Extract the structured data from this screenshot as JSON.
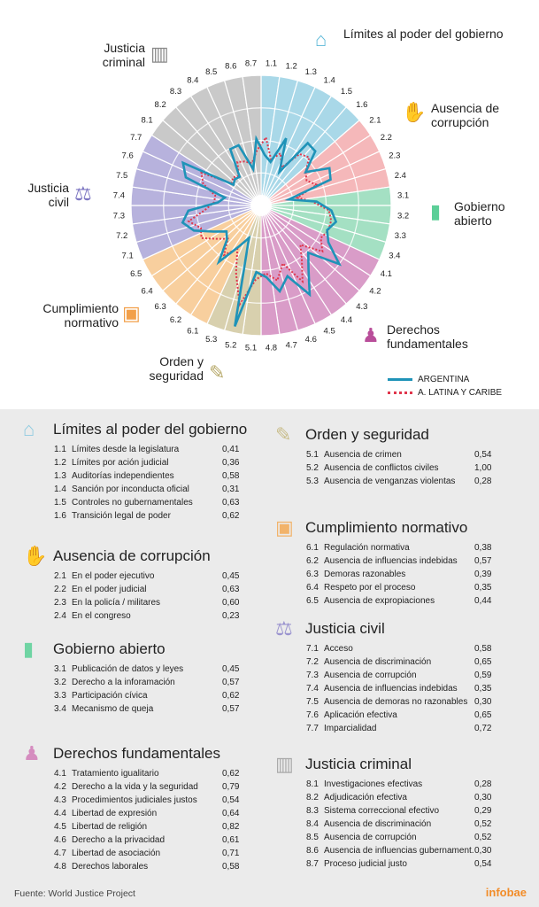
{
  "chart_data": {
    "type": "radar",
    "rlim": [
      0,
      1
    ],
    "axes": [
      "1.1",
      "1.2",
      "1.3",
      "1.4",
      "1.5",
      "1.6",
      "2.1",
      "2.2",
      "2.3",
      "2.4",
      "3.1",
      "3.2",
      "3.3",
      "3.4",
      "4.1",
      "4.2",
      "4.3",
      "4.4",
      "4.5",
      "4.6",
      "4.7",
      "4.8",
      "5.1",
      "5.2",
      "5.3",
      "6.1",
      "6.2",
      "6.3",
      "6.4",
      "6.5",
      "7.1",
      "7.2",
      "7.3",
      "7.4",
      "7.5",
      "7.6",
      "7.7",
      "8.1",
      "8.2",
      "8.3",
      "8.4",
      "8.5",
      "8.6",
      "8.7"
    ],
    "legend_placement": "bottom-right",
    "series": [
      {
        "name": "ARGENTINA",
        "color": "#1f93b8",
        "style": "solid",
        "values": [
          0.41,
          0.36,
          0.58,
          0.31,
          0.63,
          0.62,
          0.45,
          0.63,
          0.6,
          0.23,
          0.45,
          0.57,
          0.62,
          0.57,
          0.62,
          0.79,
          0.54,
          0.64,
          0.82,
          0.61,
          0.71,
          0.58,
          0.54,
          1.0,
          0.28,
          0.38,
          0.57,
          0.39,
          0.35,
          0.44,
          0.58,
          0.65,
          0.59,
          0.35,
          0.3,
          0.65,
          0.72,
          0.28,
          0.3,
          0.29,
          0.52,
          0.52,
          0.3,
          0.54
        ]
      },
      {
        "name": "A. LATINA Y CARIBE",
        "color": "#e0364c",
        "style": "dotted",
        "values": [
          0.55,
          0.38,
          0.45,
          0.35,
          0.52,
          0.55,
          0.45,
          0.42,
          0.48,
          0.3,
          0.42,
          0.55,
          0.58,
          0.58,
          0.55,
          0.62,
          0.45,
          0.55,
          0.7,
          0.5,
          0.62,
          0.55,
          0.6,
          0.82,
          0.58,
          0.4,
          0.5,
          0.38,
          0.45,
          0.55,
          0.52,
          0.6,
          0.45,
          0.38,
          0.38,
          0.5,
          0.55,
          0.3,
          0.32,
          0.3,
          0.4,
          0.38,
          0.35,
          0.45
        ]
      }
    ],
    "groups": [
      {
        "name": "Límites al poder del gobierno",
        "count": 6,
        "color": "#a9d8e8"
      },
      {
        "name": "Ausencia de corrupción",
        "count": 4,
        "color": "#f5b8ba"
      },
      {
        "name": "Gobierno abierto",
        "count": 4,
        "color": "#a4e0c3"
      },
      {
        "name": "Derechos fundamentales",
        "count": 8,
        "color": "#d99cc8"
      },
      {
        "name": "Orden y seguridad",
        "count": 3,
        "color": "#d8d0ae"
      },
      {
        "name": "Cumplimiento normativo",
        "count": 5,
        "color": "#f8cf9e"
      },
      {
        "name": "Justicia civil",
        "count": 7,
        "color": "#b7b2dd"
      },
      {
        "name": "Justicia criminal",
        "count": 7,
        "color": "#c9c9c9"
      }
    ]
  },
  "chart_labels": {
    "g1": "Límites al poder del gobierno",
    "g2": "Ausencia de corrupción",
    "g3": "Gobierno abierto",
    "g4": "Derechos fundamentales",
    "g5": "Orden y seguridad",
    "g6": "Cumplimiento normativo",
    "g7": "Justicia civil",
    "g8": "Justicia criminal"
  },
  "icons": {
    "g1": "dome-icon",
    "g2": "bribe-hand-icon",
    "g3": "door-icon",
    "g4": "person-icon",
    "g5": "police-icon",
    "g6": "document-icon",
    "g7": "scales-icon",
    "g8": "prison-icon"
  },
  "legend": {
    "argentina": "ARGENTINA",
    "latam": "A. LATINA Y CARIBE"
  },
  "sections": [
    {
      "title": "Límites al poder del gobierno",
      "items": [
        [
          "1.1",
          "Límites desde la legislatura",
          "0,41"
        ],
        [
          "1.2",
          "Límites por ación judicial",
          "0,36"
        ],
        [
          "1.3",
          "Auditorías independientes",
          "0,58"
        ],
        [
          "1.4",
          "Sanción por inconducta oficial",
          "0,31"
        ],
        [
          "1.5",
          "Controles no gubernamentales",
          "0,63"
        ],
        [
          "1.6",
          "Transición legal de poder",
          "0,62"
        ]
      ]
    },
    {
      "title": "Ausencia de corrupción",
      "items": [
        [
          "2.1",
          "En el poder ejecutivo",
          "0,45"
        ],
        [
          "2.2",
          "En el poder judicial",
          "0,63"
        ],
        [
          "2.3",
          "En la policía / militares",
          "0,60"
        ],
        [
          "2.4",
          "En el congreso",
          "0,23"
        ]
      ]
    },
    {
      "title": "Gobierno abierto",
      "items": [
        [
          "3.1",
          "Publicación de datos y leyes",
          "0,45"
        ],
        [
          "3.2",
          "Derecho a la inforamación",
          "0,57"
        ],
        [
          "3.3",
          "Participación cívica",
          "0,62"
        ],
        [
          "3.4",
          "Mecanismo de queja",
          "0,57"
        ]
      ]
    },
    {
      "title": "Derechos fundamentales",
      "items": [
        [
          "4.1",
          "Tratamiento igualitario",
          "0,62"
        ],
        [
          "4.2",
          "Derecho a la vida y la  seguridad",
          "0,79"
        ],
        [
          "4.3",
          "Procedimientos judiciales justos",
          "0,54"
        ],
        [
          "4.4",
          "Libertad de expresión",
          "0,64"
        ],
        [
          "4.5",
          "Libertad de religión",
          "0,82"
        ],
        [
          "4.6",
          "Derecho a la privacidad",
          "0,61"
        ],
        [
          "4.7",
          "Libertad de asociación",
          "0,71"
        ],
        [
          "4.8",
          "Derechos laborales",
          "0,58"
        ]
      ]
    },
    {
      "title": "Orden y seguridad",
      "items": [
        [
          "5.1",
          "Ausencia de crimen",
          "0,54"
        ],
        [
          "5.2",
          "Ausencia de conflictos civiles",
          "1,00"
        ],
        [
          "5.3",
          "Ausencia de venganzas violentas",
          "0,28"
        ]
      ]
    },
    {
      "title": "Cumplimiento normativo",
      "items": [
        [
          "6.1",
          "Regulación normativa",
          "0,38"
        ],
        [
          "6.2",
          "Ausencia de influencias indebidas",
          "0,57"
        ],
        [
          "6.3",
          "Demoras razonables",
          "0,39"
        ],
        [
          "6.4",
          "Respeto por el proceso",
          "0,35"
        ],
        [
          "6.5",
          "Ausencia de expropiaciones",
          "0,44"
        ]
      ]
    },
    {
      "title": "Justicia civil",
      "items": [
        [
          "7.1",
          "Acceso",
          "0,58"
        ],
        [
          "7.2",
          "Ausencia de discriminación",
          "0,65"
        ],
        [
          "7.3",
          "Ausencia de corrupción",
          "0,59"
        ],
        [
          "7.4",
          "Ausencia de influencias indebidas",
          "0,35"
        ],
        [
          "7.5",
          "Ausencia de demoras no razonables",
          "0,30"
        ],
        [
          "7.6",
          "Aplicación efectiva",
          "0,65"
        ],
        [
          "7.7",
          "Imparcialidad",
          "0,72"
        ]
      ]
    },
    {
      "title": "Justicia criminal",
      "items": [
        [
          "8.1",
          "Investigaciones efectivas",
          "0,28"
        ],
        [
          "8.2",
          "Adjudicación efectiva",
          "0,30"
        ],
        [
          "8.3",
          "Sistema correccional efectivo",
          "0,29"
        ],
        [
          "8.4",
          "Ausencia de discriminación",
          "0,52"
        ],
        [
          "8.5",
          "Ausencia de corrupción",
          "0,52"
        ],
        [
          "8.6",
          "Ausencia de influencias gubernament.",
          "0,30"
        ],
        [
          "8.7",
          "Proceso judicial justo",
          "0,54"
        ]
      ]
    }
  ],
  "footer": {
    "source": "Fuente: World Justice Project",
    "logo": "infobae"
  }
}
